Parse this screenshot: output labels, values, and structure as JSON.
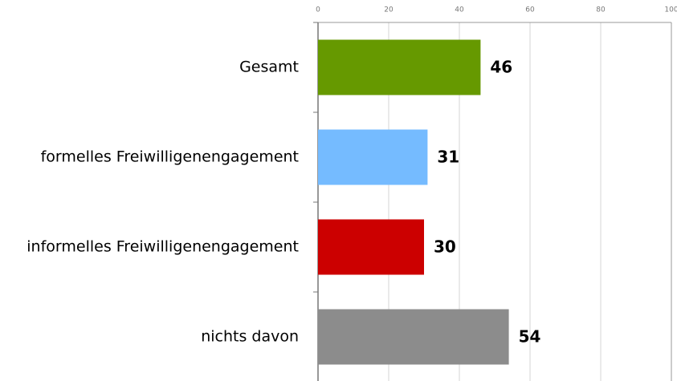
{
  "chart_data": {
    "type": "bar",
    "orientation": "horizontal",
    "categories": [
      "Gesamt",
      "formelles Freiwilligenengagement",
      "informelles Freiwilligenengagement",
      "nichts davon"
    ],
    "values": [
      46,
      31,
      30,
      54
    ],
    "colors": [
      "#669900",
      "#75bbff",
      "#cc0000",
      "#8c8c8c"
    ],
    "xlim": [
      0,
      100
    ],
    "xticks": [
      0,
      20,
      40,
      60,
      80,
      100
    ],
    "grid": true
  }
}
